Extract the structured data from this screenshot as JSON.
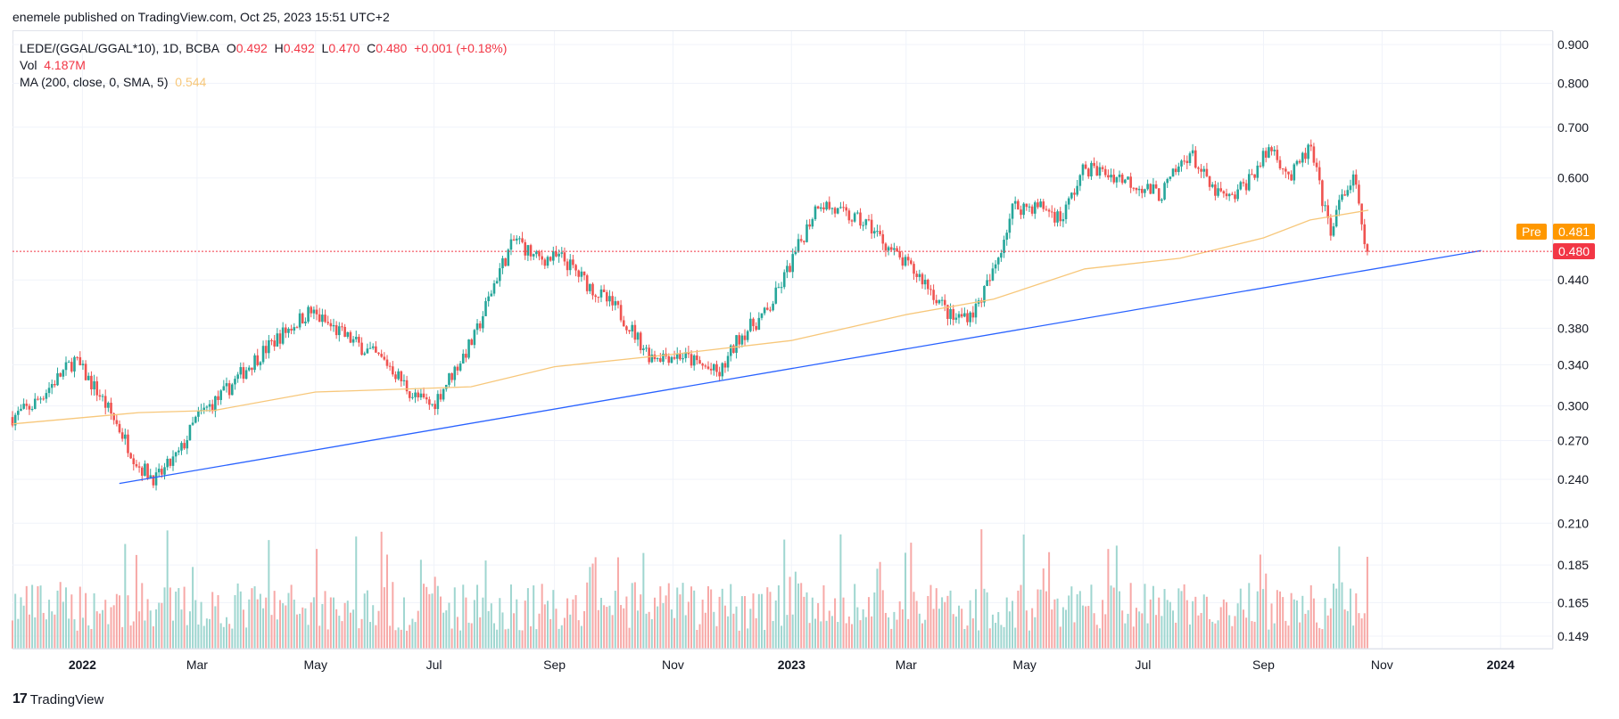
{
  "header": {
    "published": "enemele published on TradingView.com, Oct 25, 2023 15:51 UTC+2"
  },
  "legend": {
    "symbol": "LEDE/(GGAL/GGAL*10), 1D, BCBA",
    "o_label": "O",
    "o_value": "0.492",
    "h_label": "H",
    "h_value": "0.492",
    "l_label": "L",
    "l_value": "0.470",
    "c_label": "C",
    "c_value": "0.480",
    "change": "+0.001 (+0.18%)",
    "vol_label": "Vol",
    "vol_value": "4.187M",
    "ma_label": "MA (200, close, 0, SMA, 5)",
    "ma_value": "0.544"
  },
  "badges": {
    "pre_label": "Pre",
    "pre_value": "0.481",
    "last_value": "0.480"
  },
  "footer": {
    "brand": "TradingView",
    "logo": "17"
  },
  "colors": {
    "up": "#26a69a",
    "down": "#ef5350",
    "ma": "#f7c77a",
    "trend": "#2962ff",
    "pre": "#ff9800",
    "last": "#f23645"
  },
  "chart_data": {
    "type": "candlestick",
    "symbol": "LEDE/(GGAL/GGAL*10)",
    "interval": "1D",
    "exchange": "BCBA",
    "y_scale": "log",
    "y_ticks": [
      "0.900",
      "0.800",
      "0.700",
      "0.600",
      "0.440",
      "0.380",
      "0.340",
      "0.300",
      "0.270",
      "0.240",
      "0.210",
      "0.185",
      "0.165",
      "0.149"
    ],
    "y_tick_values": [
      0.9,
      0.8,
      0.7,
      0.6,
      0.44,
      0.38,
      0.34,
      0.3,
      0.27,
      0.24,
      0.21,
      0.185,
      0.165,
      0.149
    ],
    "x_ticks": [
      "2022",
      "Mar",
      "May",
      "Jul",
      "Sep",
      "Nov",
      "2023",
      "Mar",
      "May",
      "Jul",
      "Sep",
      "Nov",
      "2024"
    ],
    "x_tick_dates": [
      "2022-01-01",
      "2022-03-01",
      "2022-05-01",
      "2022-07-01",
      "2022-09-01",
      "2022-11-01",
      "2023-01-01",
      "2023-03-01",
      "2023-05-01",
      "2023-07-01",
      "2023-09-01",
      "2023-11-01",
      "2024-01-01"
    ],
    "x_range": [
      "2021-11-26",
      "2024-01-28"
    ],
    "price_path": [
      {
        "date": "2021-11-26",
        "close": 0.29
      },
      {
        "date": "2021-12-06",
        "close": 0.3
      },
      {
        "date": "2021-12-16",
        "close": 0.32
      },
      {
        "date": "2021-12-28",
        "close": 0.345
      },
      {
        "date": "2022-01-10",
        "close": 0.31
      },
      {
        "date": "2022-01-20",
        "close": 0.28
      },
      {
        "date": "2022-01-30",
        "close": 0.25
      },
      {
        "date": "2022-02-08",
        "close": 0.24
      },
      {
        "date": "2022-02-20",
        "close": 0.26
      },
      {
        "date": "2022-03-01",
        "close": 0.29
      },
      {
        "date": "2022-03-14",
        "close": 0.31
      },
      {
        "date": "2022-03-28",
        "close": 0.34
      },
      {
        "date": "2022-04-12",
        "close": 0.37
      },
      {
        "date": "2022-04-28",
        "close": 0.4
      },
      {
        "date": "2022-05-10",
        "close": 0.38
      },
      {
        "date": "2022-05-24",
        "close": 0.36
      },
      {
        "date": "2022-06-08",
        "close": 0.34
      },
      {
        "date": "2022-06-20",
        "close": 0.31
      },
      {
        "date": "2022-06-30",
        "close": 0.3
      },
      {
        "date": "2022-07-10",
        "close": 0.33
      },
      {
        "date": "2022-07-22",
        "close": 0.37
      },
      {
        "date": "2022-08-03",
        "close": 0.45
      },
      {
        "date": "2022-08-12",
        "close": 0.5
      },
      {
        "date": "2022-08-22",
        "close": 0.47
      },
      {
        "date": "2022-09-05",
        "close": 0.47
      },
      {
        "date": "2022-09-20",
        "close": 0.43
      },
      {
        "date": "2022-10-04",
        "close": 0.4
      },
      {
        "date": "2022-10-20",
        "close": 0.35
      },
      {
        "date": "2022-11-05",
        "close": 0.35
      },
      {
        "date": "2022-11-25",
        "close": 0.33
      },
      {
        "date": "2022-12-05",
        "close": 0.37
      },
      {
        "date": "2022-12-20",
        "close": 0.4
      },
      {
        "date": "2023-01-02",
        "close": 0.47
      },
      {
        "date": "2023-01-15",
        "close": 0.56
      },
      {
        "date": "2023-01-25",
        "close": 0.54
      },
      {
        "date": "2023-02-10",
        "close": 0.52
      },
      {
        "date": "2023-02-25",
        "close": 0.47
      },
      {
        "date": "2023-03-10",
        "close": 0.44
      },
      {
        "date": "2023-03-25",
        "close": 0.39
      },
      {
        "date": "2023-04-05",
        "close": 0.4
      },
      {
        "date": "2023-04-15",
        "close": 0.45
      },
      {
        "date": "2023-04-25",
        "close": 0.55
      },
      {
        "date": "2023-05-10",
        "close": 0.55
      },
      {
        "date": "2023-05-20",
        "close": 0.53
      },
      {
        "date": "2023-06-01",
        "close": 0.62
      },
      {
        "date": "2023-06-20",
        "close": 0.6
      },
      {
        "date": "2023-07-10",
        "close": 0.57
      },
      {
        "date": "2023-07-25",
        "close": 0.65
      },
      {
        "date": "2023-08-05",
        "close": 0.58
      },
      {
        "date": "2023-08-15",
        "close": 0.56
      },
      {
        "date": "2023-08-25",
        "close": 0.6
      },
      {
        "date": "2023-09-05",
        "close": 0.66
      },
      {
        "date": "2023-09-15",
        "close": 0.6
      },
      {
        "date": "2023-09-25",
        "close": 0.66
      },
      {
        "date": "2023-10-05",
        "close": 0.51
      },
      {
        "date": "2023-10-12",
        "close": 0.57
      },
      {
        "date": "2023-10-18",
        "close": 0.6
      },
      {
        "date": "2023-10-22",
        "close": 0.5
      },
      {
        "date": "2023-10-25",
        "close": 0.48
      }
    ],
    "ma_path": [
      {
        "date": "2021-11-26",
        "value": 0.284
      },
      {
        "date": "2022-01-30",
        "value": 0.294
      },
      {
        "date": "2022-03-10",
        "value": 0.296
      },
      {
        "date": "2022-05-01",
        "value": 0.313
      },
      {
        "date": "2022-06-20",
        "value": 0.316
      },
      {
        "date": "2022-07-20",
        "value": 0.318
      },
      {
        "date": "2022-09-01",
        "value": 0.338
      },
      {
        "date": "2022-11-01",
        "value": 0.351
      },
      {
        "date": "2023-01-01",
        "value": 0.366
      },
      {
        "date": "2023-03-01",
        "value": 0.396
      },
      {
        "date": "2023-04-15",
        "value": 0.415
      },
      {
        "date": "2023-06-01",
        "value": 0.455
      },
      {
        "date": "2023-07-20",
        "value": 0.47
      },
      {
        "date": "2023-09-01",
        "value": 0.5
      },
      {
        "date": "2023-09-25",
        "value": 0.528
      },
      {
        "date": "2023-10-25",
        "value": 0.544
      }
    ],
    "trendline": {
      "start": {
        "date": "2022-01-20",
        "value": 0.237
      },
      "end": {
        "date": "2023-12-22",
        "value": 0.481
      }
    },
    "last_close": 0.48,
    "pre_market": 0.481,
    "volume": {
      "last": "4.187M",
      "up_ratio": 0.5
    }
  }
}
